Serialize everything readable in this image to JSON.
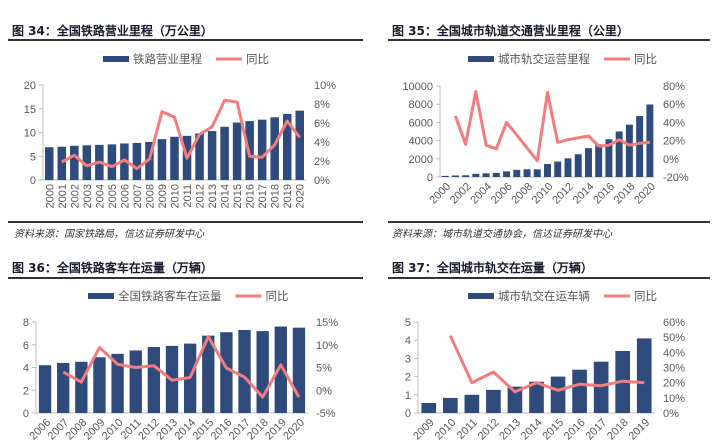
{
  "colors": {
    "bar": "#2f4b7c",
    "line": "#f47c7c",
    "axis": "#bfbfbf"
  },
  "figures": [
    {
      "title": "图 34：全国铁路营业里程（万公里）",
      "source": "资料来源：国家铁路局，信达证券研发中心"
    },
    {
      "title": "图 35：全国城市轨道交通营业里程（公里）",
      "source": "资料来源：城市轨道交通协会，信达证券研发中心"
    },
    {
      "title": "图 36：全国铁路客车在运量（万辆）"
    },
    {
      "title": "图 37：全国城市轨交在运量（万辆）"
    }
  ],
  "chart_data": [
    {
      "type": "bar+line",
      "legend": [
        "铁路营业里程",
        "同比"
      ],
      "legend_position": "top",
      "grid": false,
      "categories": [
        "2000",
        "2001",
        "2002",
        "2003",
        "2004",
        "2005",
        "2006",
        "2007",
        "2008",
        "2009",
        "2010",
        "2011",
        "2012",
        "2013",
        "2014",
        "2015",
        "2016",
        "2017",
        "2018",
        "2019",
        "2020"
      ],
      "bars": [
        6.9,
        7.0,
        7.2,
        7.3,
        7.4,
        7.5,
        7.7,
        7.8,
        8.0,
        8.6,
        9.1,
        9.3,
        9.8,
        10.3,
        11.2,
        12.1,
        12.4,
        12.7,
        13.2,
        13.9,
        14.6
      ],
      "line": [
        null,
        1.9,
        2.6,
        1.5,
        1.9,
        1.4,
        2.1,
        1.2,
        2.2,
        7.2,
        6.6,
        2.3,
        4.8,
        5.6,
        8.4,
        8.2,
        2.5,
        2.4,
        3.7,
        6.2,
        4.5
      ],
      "ylim": [
        0,
        20
      ],
      "y2lim": [
        0,
        10
      ],
      "yticks": [
        "0",
        "5",
        "10",
        "15",
        "20"
      ],
      "y2ticks": [
        "0%",
        "2%",
        "4%",
        "6%",
        "8%",
        "10%"
      ],
      "label_step": 1,
      "label_rotation": "vertical"
    },
    {
      "type": "bar+line",
      "legend": [
        "城市轨交运营里程",
        "同比"
      ],
      "legend_position": "top",
      "grid": false,
      "categories": [
        "2000",
        "2001",
        "2002",
        "2003",
        "2004",
        "2005",
        "2006",
        "2007",
        "2008",
        "2009",
        "2010",
        "2011",
        "2012",
        "2013",
        "2014",
        "2015",
        "2016",
        "2017",
        "2018",
        "2019",
        "2020"
      ],
      "bars": [
        120,
        170,
        190,
        350,
        400,
        450,
        620,
        780,
        850,
        840,
        1430,
        1700,
        2050,
        2500,
        3170,
        3600,
        4150,
        5000,
        5750,
        6700,
        7970
      ],
      "line": [
        null,
        47,
        16,
        74,
        15,
        11,
        40,
        26,
        12,
        -2,
        73,
        18,
        21,
        23,
        25,
        14,
        15,
        21,
        15,
        17,
        18
      ],
      "ylim": [
        0,
        10000
      ],
      "y2lim": [
        -20,
        80
      ],
      "yticks": [
        "0",
        "2000",
        "4000",
        "6000",
        "8000",
        "10000"
      ],
      "y2ticks": [
        "-20%",
        "0%",
        "20%",
        "40%",
        "60%",
        "80%"
      ],
      "label_step": 2,
      "label_rotation": "diagonal"
    },
    {
      "type": "bar+line",
      "legend": [
        "全国铁路客车在运量",
        "同比"
      ],
      "legend_position": "top",
      "grid": false,
      "categories": [
        "2006",
        "2007",
        "2008",
        "2009",
        "2010",
        "2011",
        "2012",
        "2013",
        "2014",
        "2015",
        "2016",
        "2017",
        "2018",
        "2019",
        "2020"
      ],
      "bars": [
        4.2,
        4.4,
        4.5,
        4.9,
        5.2,
        5.5,
        5.8,
        5.9,
        6.1,
        6.8,
        7.1,
        7.3,
        7.2,
        7.6,
        7.5
      ],
      "line": [
        null,
        4.0,
        1.8,
        9.4,
        5.7,
        5.0,
        5.4,
        2.2,
        2.8,
        11.8,
        4.9,
        2.9,
        -1.5,
        5.6,
        -1.5
      ],
      "ylim": [
        0,
        8
      ],
      "y2lim": [
        -5,
        15
      ],
      "yticks": [
        "0",
        "2",
        "4",
        "6",
        "8"
      ],
      "y2ticks": [
        "-5%",
        "0%",
        "5%",
        "10%",
        "15%"
      ],
      "label_step": 1,
      "label_rotation": "diagonal"
    },
    {
      "type": "bar+line",
      "legend": [
        "城市轨交在运车辆",
        "同比"
      ],
      "legend_position": "top",
      "grid": false,
      "categories": [
        "2009",
        "2010",
        "2011",
        "2012",
        "2013",
        "2014",
        "2015",
        "2016",
        "2017",
        "2018",
        "2019"
      ],
      "bars": [
        0.55,
        0.83,
        1.0,
        1.27,
        1.45,
        1.72,
        2.0,
        2.38,
        2.82,
        3.41,
        4.1
      ],
      "line": [
        null,
        51,
        20,
        27,
        14,
        20,
        15,
        19,
        18,
        21,
        20
      ],
      "ylim": [
        0,
        5
      ],
      "y2lim": [
        0,
        60
      ],
      "yticks": [
        "0",
        "1",
        "2",
        "3",
        "4",
        "5"
      ],
      "y2ticks": [
        "0%",
        "10%",
        "20%",
        "30%",
        "40%",
        "50%",
        "60%"
      ],
      "label_step": 1,
      "label_rotation": "diagonal"
    }
  ]
}
